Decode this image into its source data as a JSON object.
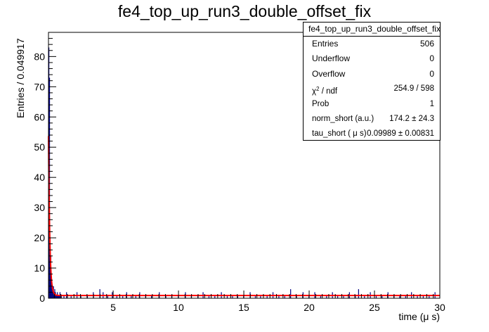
{
  "chart_data": {
    "type": "histogram",
    "title": "fe4_top_up_run3_double_offset_fix",
    "xlabel": "time (μ s)",
    "ylabel": "Entries / 0.049917",
    "xlim": [
      0.05,
      30
    ],
    "ylim": [
      0,
      88
    ],
    "bin_width": 0.049917,
    "xticks": [
      5,
      10,
      15,
      20,
      25,
      30
    ],
    "yticks": [
      0,
      10,
      20,
      30,
      40,
      50,
      60,
      70,
      80
    ],
    "grid": false,
    "histogram_color": "#000080",
    "fit_color": "#ff0000",
    "series": [
      {
        "x": [
          0.075,
          0.125,
          0.175,
          0.225,
          0.275,
          0.325,
          0.375,
          0.425,
          0.475,
          0.525,
          0.575,
          0.625,
          0.675,
          0.725,
          0.775,
          0.825,
          0.875,
          0.925,
          1.025,
          1.225,
          1.425,
          1.775,
          2.225,
          2.525,
          3.025,
          3.475,
          3.975,
          4.225,
          4.575,
          4.925,
          5.275,
          5.725,
          6.025,
          6.375,
          6.725,
          7.025,
          7.475,
          7.925,
          8.525,
          9.025,
          9.475,
          9.975,
          10.525,
          10.975,
          11.475,
          11.875,
          12.325,
          12.775,
          13.275,
          13.725,
          14.125,
          14.525,
          14.975,
          15.475,
          15.875,
          16.275,
          16.775,
          17.225,
          17.675,
          18.125,
          18.575,
          19.025,
          19.525,
          19.975,
          20.425,
          20.875,
          21.325,
          21.775,
          22.175,
          22.625,
          23.075,
          23.525,
          23.775,
          24.225,
          24.675,
          25.125,
          25.575,
          26.025,
          26.475,
          26.925,
          27.375,
          27.825,
          28.275,
          28.725,
          29.175,
          29.625
        ],
        "y": [
          83,
          73,
          20,
          14,
          6,
          3,
          2,
          4,
          1,
          3,
          2,
          1,
          1,
          2,
          1,
          1,
          1,
          2,
          1,
          1,
          2,
          1,
          2,
          1,
          1,
          2,
          3,
          2,
          1,
          2,
          1,
          1,
          2,
          1,
          1,
          2,
          1,
          1,
          2,
          1,
          1,
          1,
          2,
          1,
          1,
          2,
          1,
          1,
          2,
          1,
          1,
          1,
          1,
          2,
          1,
          1,
          1,
          2,
          1,
          1,
          3,
          1,
          2,
          1,
          2,
          1,
          1,
          2,
          1,
          1,
          2,
          1,
          3,
          1,
          2,
          1,
          1,
          2,
          1,
          1,
          1,
          2,
          1,
          1,
          1,
          2
        ]
      }
    ],
    "fit": {
      "norm_short": 174.2,
      "tau_short": 0.09989,
      "offset": 0.9
    }
  },
  "stats": {
    "header": "fe4_top_up_run3_double_offset_fix",
    "rows": [
      {
        "label": "Entries",
        "value": "506"
      },
      {
        "label": "Underflow",
        "value": "0"
      },
      {
        "label": "Overflow",
        "value": "0"
      },
      {
        "label_main": "χ",
        "label_sup": "2",
        "label_tail": " / ndf",
        "value": "254.9 / 598"
      },
      {
        "label": "Prob",
        "value": "1"
      },
      {
        "label": "norm_short (a.u.)",
        "value": "174.2  ± 24.3"
      },
      {
        "label": "tau_short ( μ s)",
        "value": "0.09989  ± 0.00831"
      }
    ]
  }
}
